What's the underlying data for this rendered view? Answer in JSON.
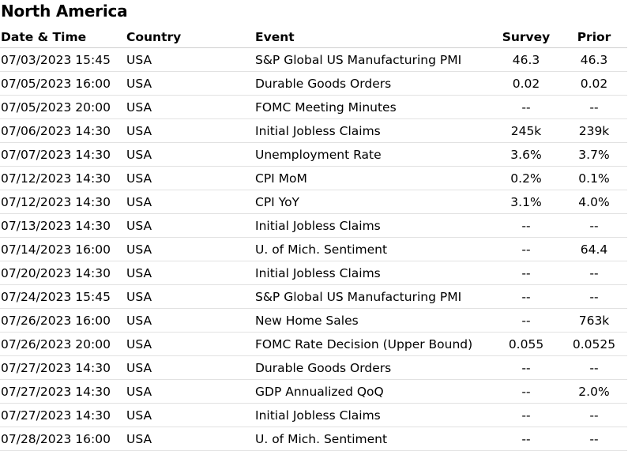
{
  "title": "North America",
  "columns": {
    "datetime": "Date & Time",
    "country": "Country",
    "event": "Event",
    "survey": "Survey",
    "prior": "Prior"
  },
  "rows": [
    {
      "datetime": "07/03/2023 15:45",
      "country": "USA",
      "event": "S&P Global US Manufacturing PMI",
      "survey": "46.3",
      "prior": "46.3"
    },
    {
      "datetime": "07/05/2023 16:00",
      "country": "USA",
      "event": "Durable Goods Orders",
      "survey": "0.02",
      "prior": "0.02"
    },
    {
      "datetime": "07/05/2023 20:00",
      "country": "USA",
      "event": "FOMC Meeting Minutes",
      "survey": "--",
      "prior": "--"
    },
    {
      "datetime": "07/06/2023 14:30",
      "country": "USA",
      "event": "Initial Jobless Claims",
      "survey": "245k",
      "prior": "239k"
    },
    {
      "datetime": "07/07/2023 14:30",
      "country": "USA",
      "event": "Unemployment Rate",
      "survey": "3.6%",
      "prior": "3.7%"
    },
    {
      "datetime": "07/12/2023 14:30",
      "country": "USA",
      "event": "CPI MoM",
      "survey": "0.2%",
      "prior": "0.1%"
    },
    {
      "datetime": "07/12/2023 14:30",
      "country": "USA",
      "event": "CPI YoY",
      "survey": "3.1%",
      "prior": "4.0%"
    },
    {
      "datetime": "07/13/2023 14:30",
      "country": "USA",
      "event": "Initial Jobless Claims",
      "survey": "--",
      "prior": "--"
    },
    {
      "datetime": "07/14/2023 16:00",
      "country": "USA",
      "event": "U. of Mich. Sentiment",
      "survey": "--",
      "prior": "64.4"
    },
    {
      "datetime": "07/20/2023 14:30",
      "country": "USA",
      "event": "Initial Jobless Claims",
      "survey": "--",
      "prior": "--"
    },
    {
      "datetime": "07/24/2023 15:45",
      "country": "USA",
      "event": "S&P Global US Manufacturing PMI",
      "survey": "--",
      "prior": "--"
    },
    {
      "datetime": "07/26/2023 16:00",
      "country": "USA",
      "event": "New Home Sales",
      "survey": "--",
      "prior": "763k"
    },
    {
      "datetime": "07/26/2023 20:00",
      "country": "USA",
      "event": "FOMC Rate Decision (Upper Bound)",
      "survey": "0.055",
      "prior": "0.0525"
    },
    {
      "datetime": "07/27/2023 14:30",
      "country": "USA",
      "event": "Durable Goods Orders",
      "survey": "--",
      "prior": "--"
    },
    {
      "datetime": "07/27/2023 14:30",
      "country": "USA",
      "event": "GDP Annualized QoQ",
      "survey": "--",
      "prior": "2.0%"
    },
    {
      "datetime": "07/27/2023 14:30",
      "country": "USA",
      "event": "Initial Jobless Claims",
      "survey": "--",
      "prior": "--"
    },
    {
      "datetime": "07/28/2023 16:00",
      "country": "USA",
      "event": "U. of Mich. Sentiment",
      "survey": "--",
      "prior": "--"
    }
  ]
}
